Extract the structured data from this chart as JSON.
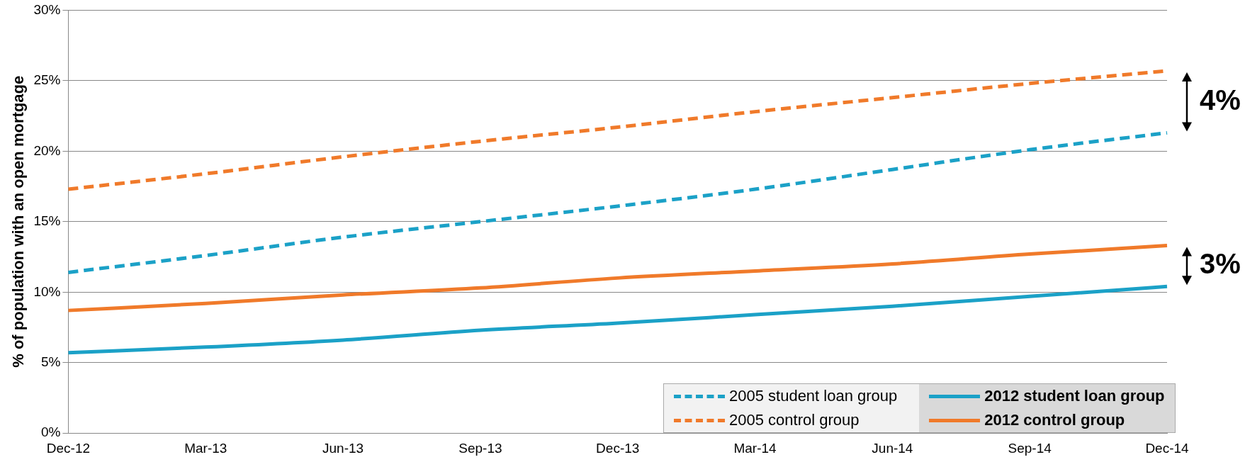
{
  "chart_data": {
    "type": "line",
    "ylabel": "% of population with an open mortgage",
    "categories": [
      "Dec-12",
      "Mar-13",
      "Jun-13",
      "Sep-13",
      "Dec-13",
      "Mar-14",
      "Jun-14",
      "Sep-14",
      "Dec-14"
    ],
    "series": [
      {
        "name": "2005 student loan group",
        "color": "#1ba1c7",
        "line_style": "dashed",
        "values": [
          11.4,
          12.6,
          13.9,
          15.0,
          16.1,
          17.3,
          18.7,
          20.1,
          21.3
        ]
      },
      {
        "name": "2005 control group",
        "color": "#f07a2a",
        "line_style": "dashed",
        "values": [
          17.3,
          18.4,
          19.6,
          20.7,
          21.7,
          22.8,
          23.8,
          24.8,
          25.7
        ]
      },
      {
        "name": "2012 student loan group",
        "color": "#1ba1c7",
        "line_style": "solid",
        "values": [
          5.7,
          6.1,
          6.6,
          7.3,
          7.8,
          8.4,
          9.0,
          9.7,
          10.4
        ]
      },
      {
        "name": "2012 control group",
        "color": "#f07a2a",
        "line_style": "solid",
        "values": [
          8.7,
          9.2,
          9.8,
          10.3,
          11.0,
          11.5,
          12.0,
          12.7,
          13.3
        ]
      }
    ],
    "ylim": [
      0,
      30
    ],
    "yticks": [
      {
        "value": 0,
        "label": "0%"
      },
      {
        "value": 5,
        "label": "5%"
      },
      {
        "value": 10,
        "label": "10%"
      },
      {
        "value": 15,
        "label": "15%"
      },
      {
        "value": 20,
        "label": "20%"
      },
      {
        "value": 25,
        "label": "25%"
      },
      {
        "value": 30,
        "label": "30%"
      }
    ],
    "grid": "y",
    "legend": "bottom right",
    "marker": "none",
    "annotations": [
      "4%",
      "3%"
    ]
  }
}
